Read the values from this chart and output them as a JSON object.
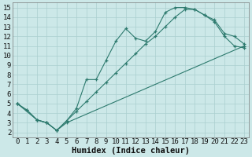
{
  "xlabel": "Humidex (Indice chaleur)",
  "bg_color": "#cce8e8",
  "grid_color": "#aacfcf",
  "line_color": "#2d7a6e",
  "xlim": [
    -0.5,
    23.5
  ],
  "ylim": [
    1.5,
    15.5
  ],
  "xticks": [
    0,
    1,
    2,
    3,
    4,
    5,
    6,
    7,
    8,
    9,
    10,
    11,
    12,
    13,
    14,
    15,
    16,
    17,
    18,
    19,
    20,
    21,
    22,
    23
  ],
  "yticks": [
    2,
    3,
    4,
    5,
    6,
    7,
    8,
    9,
    10,
    11,
    12,
    13,
    14,
    15
  ],
  "line1_x": [
    0,
    1,
    2,
    3,
    4,
    5,
    6,
    7,
    8,
    9,
    10,
    11,
    12,
    13,
    14,
    15,
    16,
    17,
    18,
    19,
    20,
    21,
    22,
    23
  ],
  "line1_y": [
    5.0,
    4.3,
    3.3,
    3.0,
    2.2,
    3.2,
    4.2,
    5.2,
    6.2,
    7.2,
    8.2,
    9.2,
    10.2,
    11.2,
    12.0,
    13.0,
    14.0,
    14.8,
    14.8,
    14.2,
    13.5,
    12.0,
    11.0,
    10.8
  ],
  "line2_x": [
    0,
    1,
    2,
    3,
    4,
    5,
    6,
    7,
    8,
    9,
    10,
    11,
    12,
    13,
    14,
    15,
    16,
    17,
    18,
    19,
    20,
    21,
    22,
    23
  ],
  "line2_y": [
    5.0,
    4.3,
    3.3,
    3.0,
    2.2,
    3.2,
    4.5,
    7.5,
    7.5,
    9.5,
    11.5,
    12.8,
    11.8,
    11.5,
    12.5,
    14.5,
    15.0,
    15.0,
    14.8,
    14.2,
    13.7,
    12.3,
    12.0,
    11.2
  ],
  "line3_x": [
    0,
    2,
    3,
    4,
    5,
    23
  ],
  "line3_y": [
    5.0,
    3.3,
    3.0,
    2.2,
    3.0,
    11.0
  ],
  "tick_fontsize": 6.5,
  "xlabel_fontsize": 7.5
}
